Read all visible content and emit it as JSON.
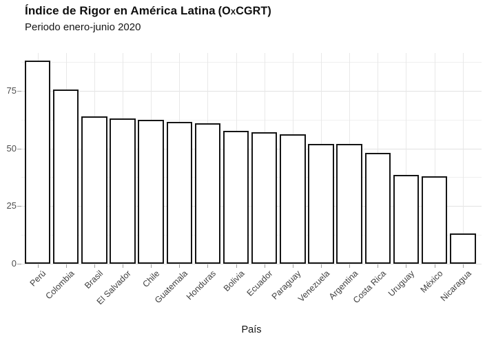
{
  "header": {
    "title_main": "Índice de Rigor en América Latina",
    "title_acronym": "(OxCGRT)",
    "subtitle": "Periodo enero-junio 2020"
  },
  "chart_data": {
    "type": "bar",
    "title": "Índice de Rigor en América Latina (OxCGRT)",
    "subtitle": "Periodo enero-junio 2020",
    "xlabel": "País",
    "ylabel": "",
    "categories": [
      "Perú",
      "Colombia",
      "Brasil",
      "El Salvador",
      "Chile",
      "Guatemala",
      "Honduras",
      "Bolivia",
      "Ecuador",
      "Paraguay",
      "Venezuela",
      "Argentina",
      "Costa Rica",
      "Uruguay",
      "México",
      "Nicaragua"
    ],
    "values": [
      88,
      75.5,
      64,
      63,
      62.5,
      61.5,
      61,
      57.5,
      57,
      56,
      52,
      52,
      48,
      38.5,
      38,
      13
    ],
    "ylim": [
      0,
      91.35
    ],
    "yticks_major": [
      0,
      25,
      50,
      75
    ],
    "yticks_minor": [
      12.5,
      37.5,
      62.5,
      87.5
    ],
    "grid": "on",
    "legend": "none",
    "bar_fill": "#ffffff",
    "bar_border": "#141414"
  },
  "colors": {
    "background": "#ffffff",
    "grid_major": "#e2e2e2",
    "grid_minor": "#f0f0f0",
    "axis_text": "#4d4d4d",
    "title_text": "#0f0f0f"
  }
}
